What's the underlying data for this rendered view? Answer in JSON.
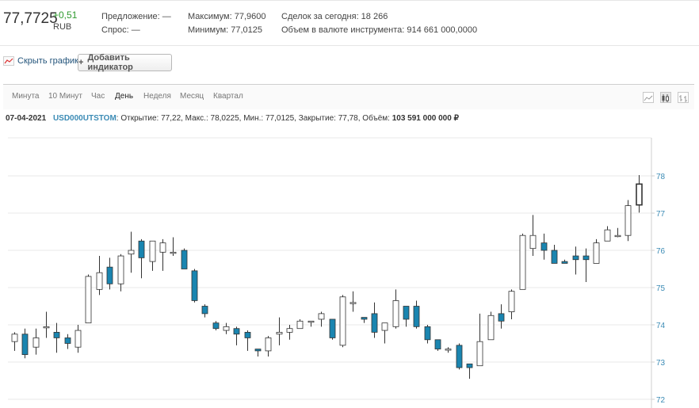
{
  "quote": {
    "price": "77,7725",
    "change": "+0,51",
    "currency": "RUB",
    "offer_label": "Предложение: —",
    "bid_label": "Спрос: —",
    "max_label": "Максимум: 77,9600",
    "min_label": "Минимум: 77,0125",
    "trades_label": "Сделок за сегодня: 18 266",
    "volume_label": "Объем в валюте инструмента: 914 661 000,0000"
  },
  "toolbar": {
    "hide_chart": "Скрыть график",
    "add_indicator": "Добавить индикатор",
    "add_indicator_plus": "+"
  },
  "tabs": [
    "Минута",
    "10 Минут",
    "Час",
    "День",
    "Неделя",
    "Месяц",
    "Квартал"
  ],
  "active_tab": "День",
  "chart_types": [
    "line-chart-icon",
    "candlestick-chart-icon",
    "bar-chart-icon"
  ],
  "ohlc_line": {
    "date": "07-04-2021",
    "ticker": "USD000UTSTOM",
    "details": ": Открытие: 77,22, Макс.: 78,0225, Мин.: 77,0125, Закрытие: 77,78, Объём:",
    "volume": "103 591 000 000 ₽"
  },
  "colors": {
    "up_fill": "#ffffff",
    "down_fill": "#1a85b0",
    "candle_stroke": "#333333",
    "positive_change": "#2e9a2e",
    "axis_text": "#3b8bb5",
    "grid": "#e8e8e8"
  },
  "chart_data": {
    "type": "candlestick",
    "ylim": [
      72,
      78.2
    ],
    "y_ticks": [
      "72",
      "73",
      "74",
      "75",
      "76",
      "77",
      "78"
    ],
    "grid": true,
    "ohlc": [
      [
        73.55,
        73.75,
        73.3,
        73.8
      ],
      [
        73.75,
        73.2,
        73.1,
        73.9
      ],
      [
        73.4,
        73.65,
        73.2,
        73.9
      ],
      [
        73.95,
        73.95,
        73.65,
        74.35
      ],
      [
        73.8,
        73.65,
        73.25,
        74.05
      ],
      [
        73.65,
        73.5,
        73.35,
        73.75
      ],
      [
        73.4,
        73.85,
        73.25,
        74.0
      ],
      [
        74.05,
        75.3,
        74.05,
        75.35
      ],
      [
        74.95,
        75.4,
        74.8,
        75.85
      ],
      [
        75.55,
        75.1,
        74.95,
        75.8
      ],
      [
        75.1,
        75.85,
        74.9,
        75.9
      ],
      [
        75.9,
        76.0,
        75.4,
        76.5
      ],
      [
        76.25,
        75.8,
        75.25,
        76.3
      ],
      [
        75.7,
        76.25,
        75.45,
        76.25
      ],
      [
        75.95,
        76.2,
        75.45,
        76.3
      ],
      [
        75.95,
        75.95,
        75.85,
        76.35
      ],
      [
        76.0,
        75.5,
        75.5,
        76.05
      ],
      [
        75.45,
        74.65,
        74.6,
        75.5
      ],
      [
        74.5,
        74.3,
        74.2,
        74.55
      ],
      [
        74.05,
        73.9,
        73.85,
        74.1
      ],
      [
        73.85,
        73.95,
        73.75,
        74.05
      ],
      [
        73.9,
        73.75,
        73.45,
        73.95
      ],
      [
        73.8,
        73.65,
        73.3,
        73.85
      ],
      [
        73.35,
        73.3,
        73.15,
        73.35
      ],
      [
        73.3,
        73.65,
        73.15,
        73.7
      ],
      [
        73.75,
        73.8,
        73.45,
        74.2
      ],
      [
        73.8,
        73.9,
        73.6,
        74.0
      ],
      [
        73.9,
        74.1,
        73.9,
        74.15
      ],
      [
        74.1,
        74.1,
        73.95,
        74.1
      ],
      [
        74.15,
        74.3,
        73.95,
        74.35
      ],
      [
        74.15,
        73.65,
        73.6,
        74.1
      ],
      [
        73.45,
        74.75,
        73.4,
        74.8
      ],
      [
        74.6,
        74.6,
        74.35,
        74.9
      ],
      [
        74.2,
        74.15,
        74.05,
        74.2
      ],
      [
        74.3,
        73.8,
        73.65,
        74.6
      ],
      [
        73.85,
        74.05,
        73.5,
        74.05
      ],
      [
        73.95,
        74.65,
        73.9,
        74.95
      ],
      [
        74.5,
        74.15,
        73.95,
        74.5
      ],
      [
        74.5,
        73.95,
        73.9,
        74.65
      ],
      [
        73.95,
        73.6,
        73.5,
        74.0
      ],
      [
        73.6,
        73.35,
        73.3,
        73.55
      ],
      [
        73.35,
        73.35,
        73.25,
        73.4
      ],
      [
        73.45,
        72.85,
        72.8,
        73.5
      ],
      [
        72.95,
        72.85,
        72.55,
        72.95
      ],
      [
        72.9,
        73.55,
        72.9,
        74.3
      ],
      [
        73.6,
        74.25,
        73.6,
        74.35
      ],
      [
        74.3,
        74.1,
        73.9,
        74.55
      ],
      [
        74.35,
        74.9,
        74.15,
        74.95
      ],
      [
        74.95,
        76.4,
        74.95,
        76.45
      ],
      [
        76.05,
        76.4,
        75.85,
        76.95
      ],
      [
        76.2,
        76.0,
        75.75,
        76.45
      ],
      [
        76.0,
        75.65,
        75.65,
        76.15
      ],
      [
        75.7,
        75.65,
        75.65,
        75.75
      ],
      [
        75.85,
        75.75,
        75.35,
        76.1
      ],
      [
        75.85,
        75.75,
        75.15,
        76.05
      ],
      [
        75.65,
        76.2,
        75.65,
        76.3
      ],
      [
        76.25,
        76.55,
        76.25,
        76.65
      ],
      [
        76.4,
        76.4,
        76.35,
        76.6
      ],
      [
        76.4,
        77.2,
        76.25,
        77.35
      ],
      [
        77.22,
        77.78,
        77.0125,
        78.0225
      ]
    ]
  }
}
